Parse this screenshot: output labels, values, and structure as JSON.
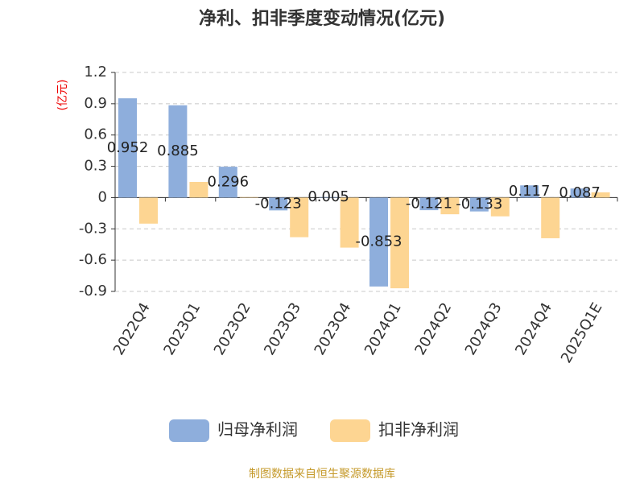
{
  "chart_data": {
    "type": "bar",
    "title": "净利、扣非季度变动情况(亿元)",
    "y_label": "(亿元)",
    "source": "制图数据来自恒生聚源数据库",
    "categories": [
      "2022Q4",
      "2023Q1",
      "2023Q2",
      "2023Q3",
      "2023Q4",
      "2024Q1",
      "2024Q2",
      "2024Q3",
      "2024Q4",
      "2025Q1E"
    ],
    "series": [
      {
        "name": "归母净利润",
        "color": "#8eaedc",
        "values": [
          0.952,
          0.885,
          0.296,
          -0.123,
          0.005,
          -0.853,
          -0.121,
          -0.133,
          0.117,
          0.087
        ]
      },
      {
        "name": "扣非净利润",
        "color": "#fdd592",
        "values": [
          -0.25,
          0.15,
          0.005,
          -0.38,
          -0.48,
          -0.87,
          -0.16,
          -0.18,
          -0.39,
          0.05
        ]
      }
    ],
    "ylim": [
      -0.9,
      1.2
    ],
    "yticks": [
      -0.9,
      -0.6,
      -0.3,
      0,
      0.3,
      0.6,
      0.9,
      1.2
    ],
    "grid": true
  }
}
